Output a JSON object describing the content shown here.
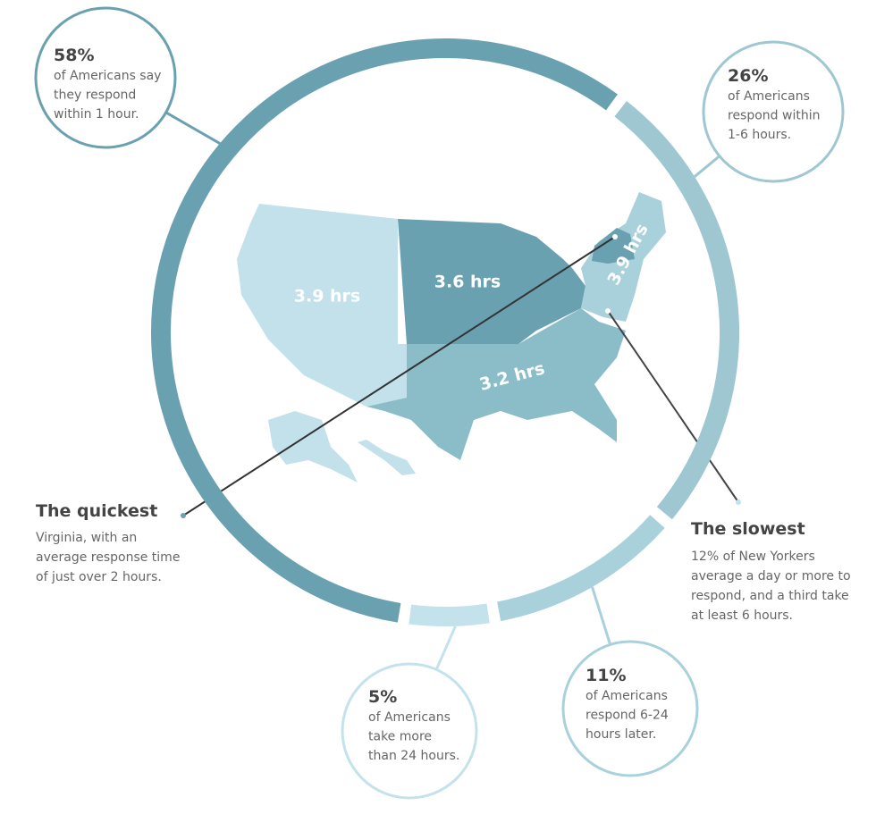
{
  "segments": [
    {
      "value": 26,
      "label": "26%",
      "lines": [
        "of Americans",
        "respond within",
        "1-6 hours."
      ],
      "color": "#9fc7d2"
    },
    {
      "value": 11,
      "label": "11%",
      "lines": [
        "of Americans",
        "respond 6-24",
        "hours later."
      ],
      "color": "#a9d1dc"
    },
    {
      "value": 5,
      "label": "5%",
      "lines": [
        "of Americans",
        "take more",
        "than 24 hours."
      ],
      "color": "#c4e2eb"
    },
    {
      "value": 58,
      "label": "58%",
      "lines": [
        "of Americans say",
        "they respond",
        "within 1 hour."
      ],
      "color": "#6aa1b1"
    }
  ],
  "regions": [
    {
      "label": "3.9 hrs",
      "color": "#c3e1eb"
    },
    {
      "label": "3.6 hrs",
      "color": "#6aa1b1"
    },
    {
      "label": "3.2 hrs",
      "color": "#8bbdc9"
    },
    {
      "label": "3.9 hrs",
      "color": "#a9d1dc"
    }
  ],
  "callouts": {
    "quickest": {
      "title": "The quickest",
      "lines": [
        "Virginia, with an",
        "average response time",
        "of just over 2 hours."
      ]
    },
    "slowest": {
      "title": "The slowest",
      "lines": [
        "12% of New Yorkers",
        "average a day or more to",
        "respond, and a third take",
        "at least 6 hours."
      ]
    }
  }
}
